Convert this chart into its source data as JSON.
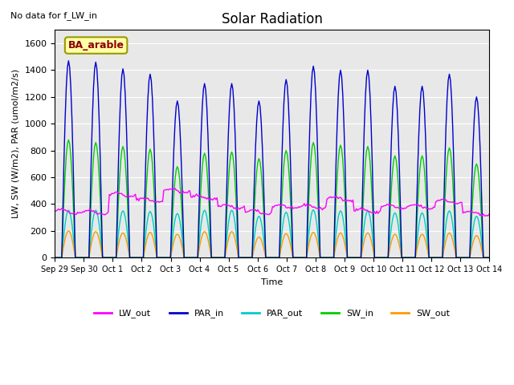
{
  "title": "Solar Radiation",
  "note": "No data for f_LW_in",
  "ylabel": "LW, SW (W/m2), PAR (umol/m2/s)",
  "xlabel": "Time",
  "annotation_label": "BA_arable",
  "ylim": [
    0,
    1700
  ],
  "yticks": [
    0,
    200,
    400,
    600,
    800,
    1000,
    1200,
    1400,
    1600
  ],
  "background_color": "#e8e8e8",
  "series_colors": {
    "LW_out": "#ff00ff",
    "PAR_in": "#0000cc",
    "PAR_out": "#00cccc",
    "SW_in": "#00cc00",
    "SW_out": "#ff9900"
  },
  "x_tick_labels": [
    "Sep 29",
    "Sep 30",
    "Oct 1",
    "Oct 2",
    "Oct 3",
    "Oct 4",
    "Oct 5",
    "Oct 6",
    "Oct 7",
    "Oct 8",
    "Oct 9",
    "Oct 10",
    "Oct 11",
    "Oct 12",
    "Oct 13",
    "Oct 14"
  ],
  "num_days": 16,
  "par_in_peaks": [
    1470,
    1460,
    1410,
    1370,
    1170,
    1300,
    1300,
    1170,
    1330,
    1430,
    1400,
    1400,
    1280,
    1280,
    1370,
    1200
  ],
  "sw_in_peaks": [
    880,
    860,
    830,
    810,
    680,
    780,
    790,
    740,
    800,
    860,
    840,
    830,
    760,
    760,
    820,
    700
  ],
  "sw_out_peaks": [
    200,
    195,
    185,
    190,
    175,
    195,
    195,
    155,
    180,
    190,
    185,
    185,
    175,
    175,
    185,
    165
  ],
  "par_out_peaks": [
    355,
    355,
    350,
    345,
    330,
    355,
    355,
    310,
    340,
    358,
    350,
    350,
    335,
    335,
    350,
    310
  ],
  "lw_base_per_day": [
    345,
    340,
    470,
    430,
    500,
    450,
    380,
    340,
    380,
    380,
    440,
    350,
    380,
    380,
    420,
    330
  ],
  "figsize": [
    6.4,
    4.8
  ],
  "dpi": 100
}
